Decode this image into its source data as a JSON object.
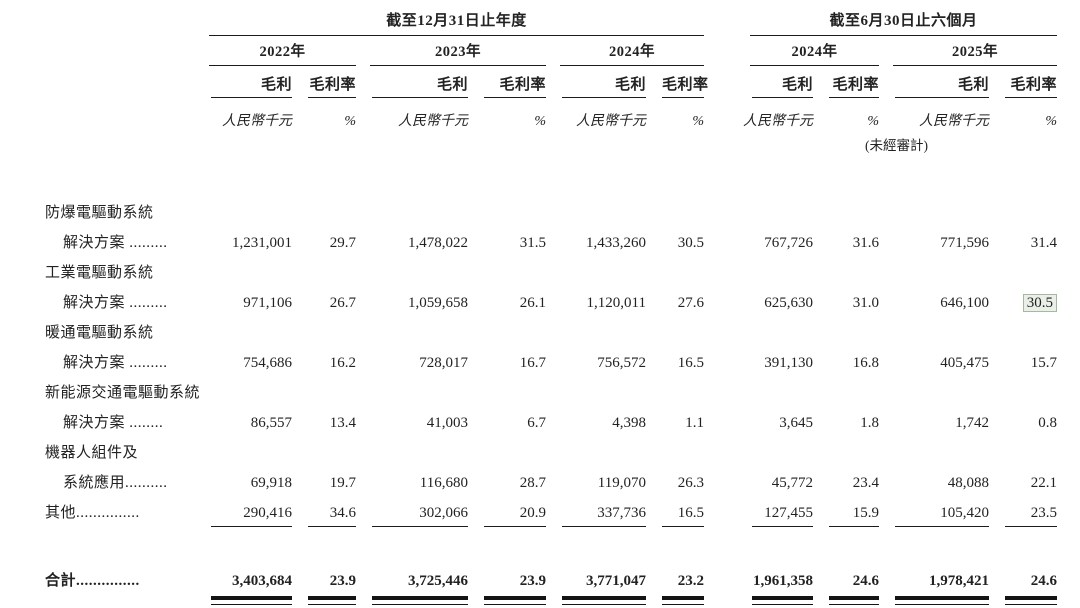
{
  "table": {
    "sections": [
      {
        "title": "截至12月31日止年度"
      },
      {
        "title": "截至6月30日止六個月"
      }
    ],
    "years": [
      "2022年",
      "2023年",
      "2024年",
      "2024年",
      "2025年"
    ],
    "subheaders": {
      "gross_profit": "毛利",
      "gross_margin": "毛利率"
    },
    "units": {
      "gross_profit": "人民幣千元",
      "gross_margin": "%"
    },
    "unaudited_note": "(未經審計)",
    "rows": [
      {
        "label_lines": [
          "防爆電驅動系統",
          "解決方案 ........."
        ],
        "values": [
          "1,231,001",
          "29.7",
          "1,478,022",
          "31.5",
          "1,433,260",
          "30.5",
          "767,726",
          "31.6",
          "771,596",
          "31.4"
        ]
      },
      {
        "label_lines": [
          "工業電驅動系統",
          "解決方案 ........."
        ],
        "values": [
          "971,106",
          "26.7",
          "1,059,658",
          "26.1",
          "1,120,011",
          "27.6",
          "625,630",
          "31.0",
          "646,100",
          "30.5"
        ],
        "highlight_col": 9
      },
      {
        "label_lines": [
          "暖通電驅動系統",
          "解決方案 ........."
        ],
        "values": [
          "754,686",
          "16.2",
          "728,017",
          "16.7",
          "756,572",
          "16.5",
          "391,130",
          "16.8",
          "405,475",
          "15.7"
        ]
      },
      {
        "label_lines": [
          "新能源交通電驅動系統",
          "解決方案 ........"
        ],
        "values": [
          "86,557",
          "13.4",
          "41,003",
          "6.7",
          "4,398",
          "1.1",
          "3,645",
          "1.8",
          "1,742",
          "0.8"
        ]
      },
      {
        "label_lines": [
          "機器人組件及",
          "系統應用.........."
        ],
        "values": [
          "69,918",
          "19.7",
          "116,680",
          "28.7",
          "119,070",
          "26.3",
          "45,772",
          "23.4",
          "48,088",
          "22.1"
        ]
      },
      {
        "label_lines": [
          "其他..............."
        ],
        "values": [
          "290,416",
          "34.6",
          "302,066",
          "20.9",
          "337,736",
          "16.5",
          "127,455",
          "15.9",
          "105,420",
          "23.5"
        ]
      }
    ],
    "total_row": {
      "label": "合計...............",
      "values": [
        "3,403,684",
        "23.9",
        "3,725,446",
        "23.9",
        "3,771,047",
        "23.2",
        "1,961,358",
        "24.6",
        "1,978,421",
        "24.6"
      ]
    },
    "highlight_colors": {
      "background": "#eaf0e8",
      "border": "#a6b7a2"
    }
  }
}
